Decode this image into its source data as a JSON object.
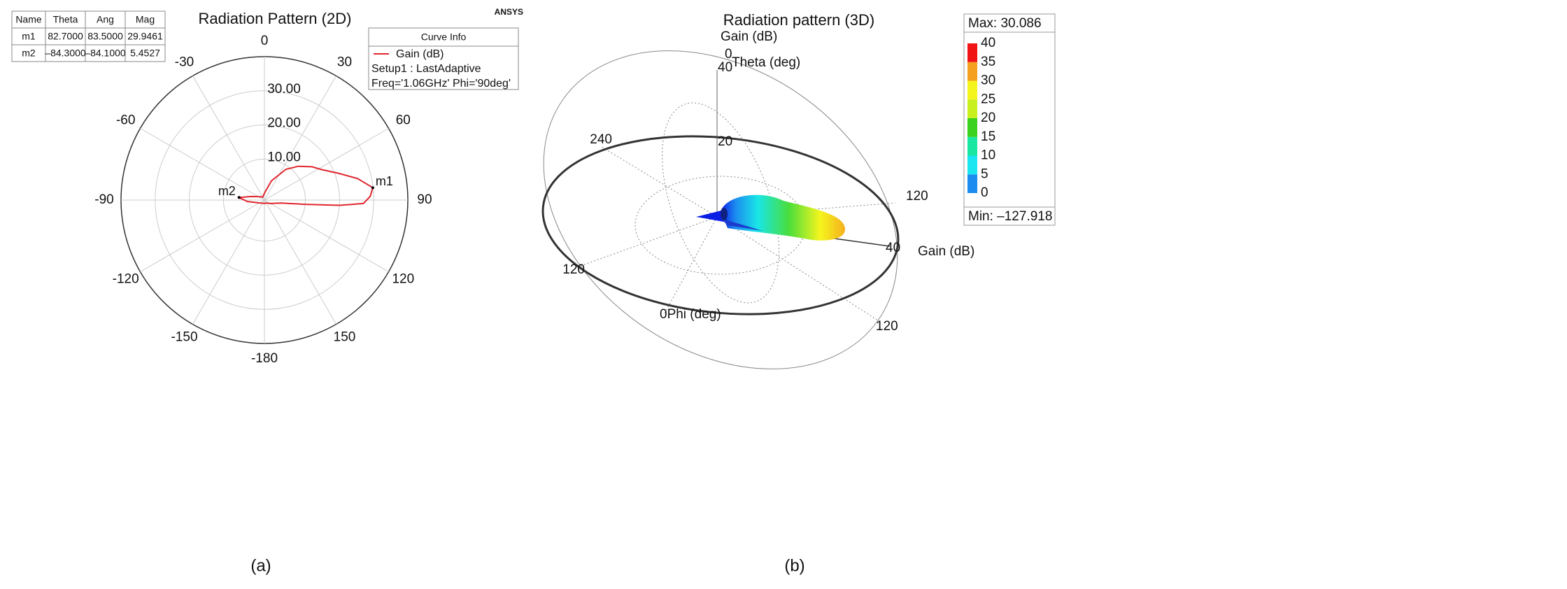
{
  "chart_data": [
    {
      "type": "polar",
      "title": "Radiation Pattern (2D)",
      "brand": "ANSYS",
      "caption": "(a)",
      "rlim": [
        -2,
        40
      ],
      "rticks": [
        {
          "value": 10,
          "label": "10.00"
        },
        {
          "value": 20,
          "label": "20.00"
        },
        {
          "value": 30,
          "label": "30.00"
        }
      ],
      "thetaticks": [
        0,
        30,
        60,
        90,
        120,
        150,
        -180,
        -150,
        -120,
        -90,
        -60,
        -30
      ],
      "legend_title": "Curve Info",
      "legend_lines": [
        "Setup1 : LastAdaptive",
        "Freq='1.06GHz' Phi='90deg'"
      ],
      "series": [
        {
          "name": "Gain (dB)",
          "color": "#e0262f",
          "theta": [
            -95,
            -84.3,
            -75,
            -60,
            -30,
            0,
            20,
            35,
            45,
            55,
            62,
            70,
            77,
            83.5,
            88,
            92,
            94,
            96,
            100,
            120,
            150,
            180
          ],
          "values": [
            3,
            5.45,
            2,
            0,
            -1,
            0,
            4,
            9,
            12,
            15,
            17,
            21,
            26,
            29.95,
            29,
            27,
            20,
            10,
            3,
            0,
            -1,
            -1
          ]
        }
      ],
      "marker_table_header": [
        "Name",
        "Theta",
        "Ang",
        "Mag"
      ],
      "markers": [
        {
          "name": "m1",
          "theta": {
            "value": 82.7,
            "label": "82.7000"
          },
          "ang": {
            "value": 83.5,
            "label": "83.5000"
          },
          "mag": {
            "value": 29.9461,
            "label": "29.9461"
          }
        },
        {
          "name": "m2",
          "theta": {
            "value": -84.3,
            "label": "–84.3000"
          },
          "ang": {
            "value": -84.1,
            "label": "–84.1000"
          },
          "mag": {
            "value": 5.4527,
            "label": "5.4527"
          }
        }
      ]
    },
    {
      "type": "surface3d",
      "title": "Radiation pattern (3D)",
      "caption": "(b)",
      "labels": [
        "Gain (dB)",
        "0",
        "Theta (deg)",
        "40",
        "20",
        "240",
        "120",
        "40",
        "Gain (dB)",
        "120",
        "0Phi (deg)",
        "120"
      ],
      "max_text": "Max: 30.086",
      "min_text": "Min: –127.918",
      "colorbar_ticks": [
        0,
        5,
        10,
        15,
        20,
        25,
        30,
        35,
        40
      ],
      "colorbar_colors": [
        "#0a1ee6",
        "#1c8cf0",
        "#19e6f0",
        "#19e6a0",
        "#3ad21e",
        "#c8f01e",
        "#f5f51e",
        "#f5a01e",
        "#f01414"
      ]
    }
  ]
}
